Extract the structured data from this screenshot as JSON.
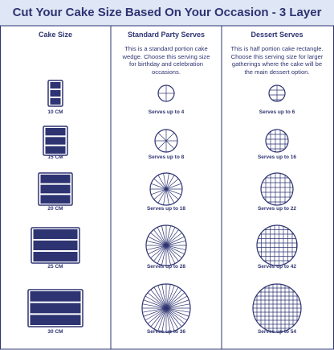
{
  "title": "Cut Your Cake Size Based On Your Occasion - 3 Layer",
  "columns": [
    {
      "header": "Cake Size"
    },
    {
      "header": "Standard Party Serves",
      "description": "This is a standard portion cake wedge. Choose this serving size for birthday and celebration occasions."
    },
    {
      "header": "Dessert Serves",
      "description": "This is half portion cake rectangle. Choose this serving size for larger gatherings where the cake will be the main dessert option."
    }
  ],
  "rows": [
    {
      "size": "10 CM",
      "party": "Serves up to 4",
      "dessert": "Serves up to 6"
    },
    {
      "size": "15 CM",
      "party": "Serves up to 8",
      "dessert": "Serves up to 16"
    },
    {
      "size": "20 CM",
      "party": "Serves up to 18",
      "dessert": "Serves up to 22"
    },
    {
      "size": "25 CM",
      "party": "Serves up to 28",
      "dessert": "Serves up to 42"
    },
    {
      "size": "30 CM",
      "party": "Serves up to 36",
      "dessert": "Serves up to 54"
    }
  ]
}
